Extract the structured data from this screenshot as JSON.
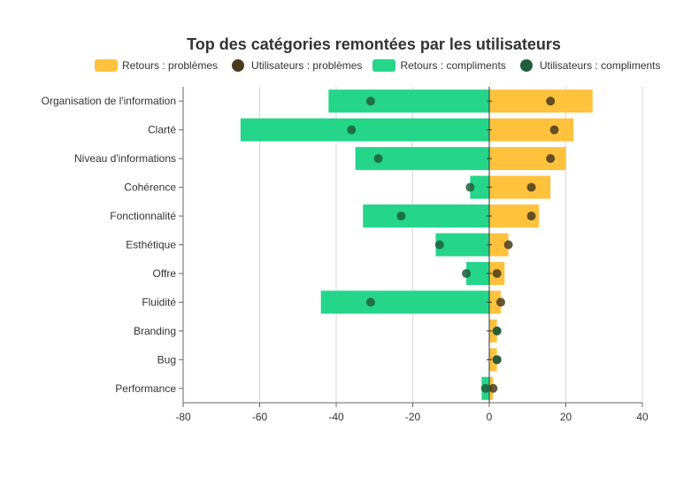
{
  "chart_data": {
    "type": "bar",
    "orientation": "horizontal",
    "stacked": "diverging",
    "title": "Top des catégories remontées par les utilisateurs",
    "categories": [
      "Organisation de l'information",
      "Clarté",
      "Niveau d'informations",
      "Cohérence",
      "Fonctionnalité",
      "Esthétique",
      "Offre",
      "Fluidité",
      "Branding",
      "Bug",
      "Performance"
    ],
    "series": [
      {
        "name": "Retours : problèmes",
        "kind": "bar",
        "color": "#FFC23D",
        "values": [
          27,
          22,
          20,
          16,
          13,
          5,
          4,
          3,
          2,
          2,
          1
        ]
      },
      {
        "name": "Utilisateurs : problèmes",
        "kind": "point",
        "color": "#4A3A1C",
        "values": [
          16,
          17,
          16,
          11,
          11,
          5,
          2,
          3,
          2,
          2,
          1
        ]
      },
      {
        "name": "Retours : compliments",
        "kind": "bar",
        "color": "#25D58A",
        "values": [
          -42,
          -65,
          -35,
          -5,
          -33,
          -14,
          -6,
          -44,
          0,
          0,
          -2
        ]
      },
      {
        "name": "Utilisateurs : compliments",
        "kind": "point",
        "color": "#1F5E3B",
        "values": [
          -31,
          -36,
          -29,
          -5,
          -23,
          -13,
          -6,
          -31,
          2,
          2,
          -1
        ]
      }
    ],
    "xlim": [
      -80,
      40
    ],
    "xticks": [
      -80,
      -60,
      -40,
      -20,
      0,
      20,
      40
    ],
    "grid": true,
    "legend": "top"
  }
}
